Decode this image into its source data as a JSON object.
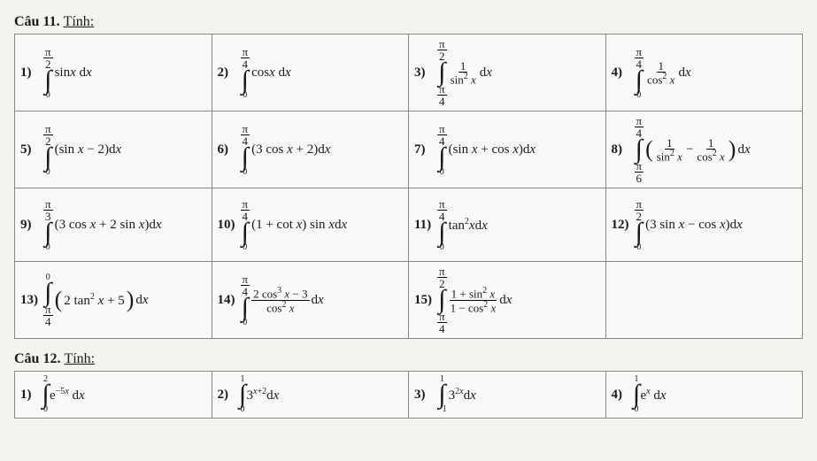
{
  "q11": {
    "title": "Câu 11.",
    "subtitle": "Tính:",
    "border_color": "#888888",
    "bg_color": "#faf9f7",
    "rows": [
      [
        {
          "n": "1)",
          "ul": "π",
          "ud": "2",
          "lo": "0",
          "body": "sin<i>x</i> d<i>x</i>"
        },
        {
          "n": "2)",
          "ul": "π",
          "ud": "4",
          "lo": "0",
          "body": "cos<i>x</i> d<i>x</i>"
        },
        {
          "n": "3)",
          "ul": "π",
          "ud": "2",
          "ll": "π",
          "ld": "4",
          "fracN": "1",
          "fracD": "sin<sup>2</sup> <i>x</i>",
          "tail": "d<i>x</i>"
        },
        {
          "n": "4)",
          "ul": "π",
          "ud": "4",
          "lo": "0",
          "fracN": "1",
          "fracD": "cos<sup>2</sup> <i>x</i>",
          "tail": "d<i>x</i>"
        }
      ],
      [
        {
          "n": "5)",
          "ul": "π",
          "ud": "2",
          "lo": "0",
          "body": "(sin <i>x</i> − 2)d<i>x</i>"
        },
        {
          "n": "6)",
          "ul": "π",
          "ud": "4",
          "lo": "0",
          "body": "(3 cos <i>x</i> + 2)d<i>x</i>"
        },
        {
          "n": "7)",
          "ul": "π",
          "ud": "4",
          "lo": "0",
          "body": "(sin <i>x</i> + cos <i>x</i>)d<i>x</i>"
        },
        {
          "n": "8)",
          "ul": "π",
          "ud": "4",
          "ll": "π",
          "ld": "6",
          "paren": true,
          "fracN": "1",
          "fracD": "sin<sup>2</sup> <i>x</i>",
          "minus": "−",
          "frac2N": "1",
          "frac2D": "cos<sup>2</sup> <i>x</i>",
          "tail": "d<i>x</i>"
        }
      ],
      [
        {
          "n": "9)",
          "ul": "π",
          "ud": "3",
          "lo": "0",
          "body": "(3 cos <i>x</i> + 2 sin <i>x</i>)d<i>x</i>"
        },
        {
          "n": "10)",
          "ul": "π",
          "ud": "4",
          "lo": "0",
          "body": "(1 + cot <i>x</i>) sin <i>x</i>d<i>x</i>"
        },
        {
          "n": "11)",
          "ul": "π",
          "ud": "4",
          "lo": "0",
          "body": "tan<sup>2</sup><i>x</i>d<i>x</i>"
        },
        {
          "n": "12)",
          "ul": "π",
          "ud": "2",
          "lo": "0",
          "body": "(3 sin <i>x</i> − cos <i>x</i>)d<i>x</i>"
        }
      ],
      [
        {
          "n": "13)",
          "up": "0",
          "ll": "π",
          "ld": "4",
          "body": "(2 tan<sup>2</sup> <i>x</i> + 5)d<i>x</i>",
          "bigp": true
        },
        {
          "n": "14)",
          "ul": "π",
          "ud": "4",
          "lo": "0",
          "fracN": "2 cos<sup>3</sup> <i>x</i> − 3",
          "fracD": "cos<sup>2</sup> <i>x</i>",
          "tail": "d<i>x</i>"
        },
        {
          "n": "15)",
          "ul": "π",
          "ud": "2",
          "ll": "π",
          "ld": "4",
          "fracN": "1 + sin<sup>2</sup> <i>x</i>",
          "fracD": "1 − cos<sup>2</sup> <i>x</i>",
          "tail": "d<i>x</i>"
        },
        {
          "blank": true
        }
      ]
    ]
  },
  "q12": {
    "title": "Câu 12.",
    "subtitle": "Tính:",
    "cells": [
      {
        "n": "1)",
        "up": "2",
        "lo": "0",
        "body": "e<sup>−5<i>x</i></sup> d<i>x</i>"
      },
      {
        "n": "2)",
        "up": "1",
        "lo": "0",
        "body": "3<sup><i>x</i>+2</sup>d<i>x</i>"
      },
      {
        "n": "3)",
        "up": "1",
        "lo": "−1",
        "body": "3<sup>2<i>x</i></sup>d<i>x</i>"
      },
      {
        "n": "4)",
        "up": "1",
        "lo": "0",
        "body": "e<sup><i>x</i></sup> d<i>x</i>"
      }
    ]
  }
}
